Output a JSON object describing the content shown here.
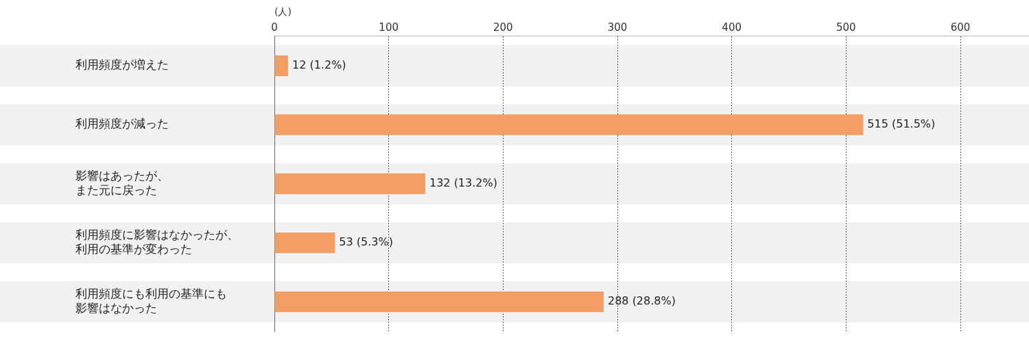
{
  "chart_data": {
    "type": "bar",
    "orientation": "horizontal",
    "xlabel": "(人)",
    "categories": [
      "利用頻度が増えた",
      "利用頻度が減った",
      [
        "影響はあったが、",
        "また元に戻った"
      ],
      [
        "利用頻度に影響はなかったが、",
        "利用の基準が変わった"
      ],
      [
        "利用頻度にも利用の基準にも",
        "影響はなかった"
      ]
    ],
    "values": [
      12,
      515,
      132,
      53,
      288
    ],
    "value_labels": [
      "12 (1.2%)",
      "515 (51.5%)",
      "132 (13.2%)",
      "53 (5.3%)",
      "288 (28.8%)"
    ],
    "color": "#f29e64",
    "xlim": [
      0,
      660
    ],
    "xticks": [
      0,
      100,
      200,
      300,
      400,
      500,
      600
    ],
    "grid": true,
    "data_labels": true
  }
}
